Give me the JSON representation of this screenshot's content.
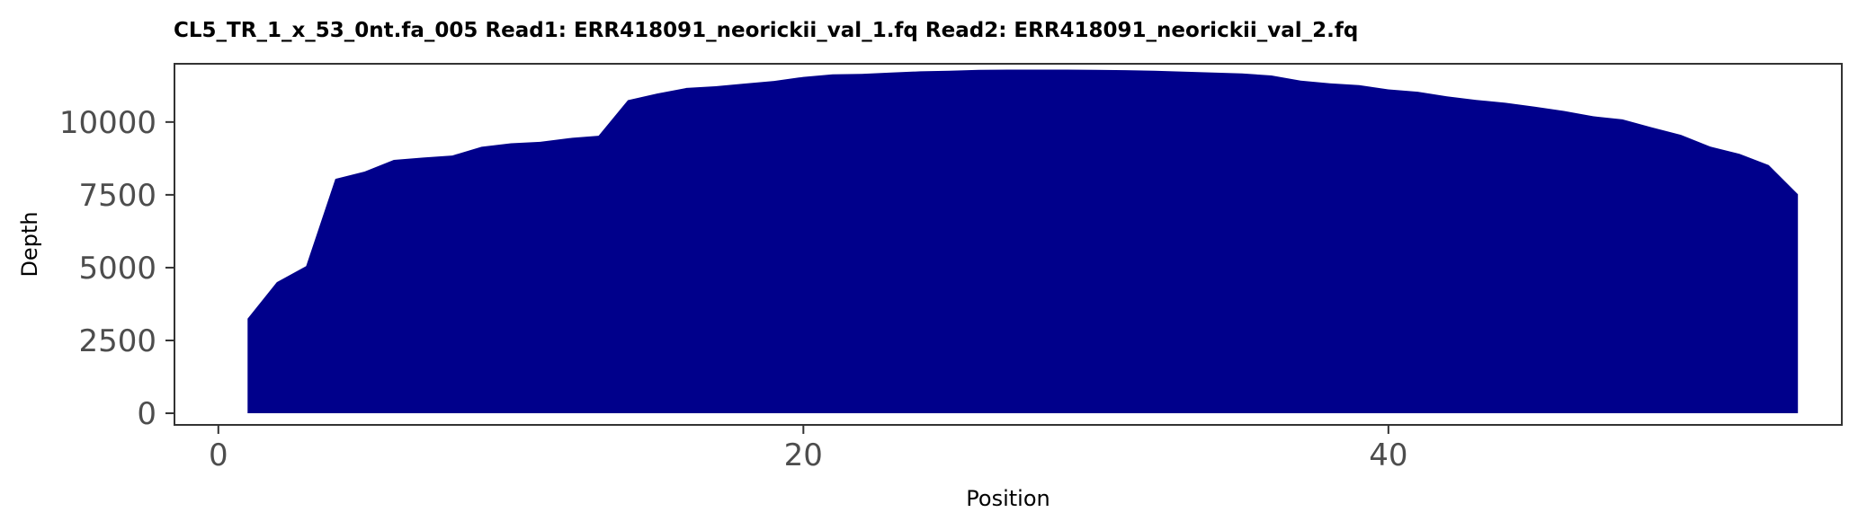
{
  "chart_data": {
    "type": "area",
    "title": "CL5_TR_1_x_53_0nt.fa_005   Read1: ERR418091_neorickii_val_1.fq   Read2: ERR418091_neorickii_val_2.fq",
    "xlabel": "Position",
    "ylabel": "Depth",
    "xlim": [
      -1.5,
      55.5
    ],
    "ylim": [
      -400,
      12000
    ],
    "x_ticks": [
      0,
      20,
      40
    ],
    "y_ticks": [
      0,
      2500,
      5000,
      7500,
      10000
    ],
    "grid": false,
    "legend": "none",
    "fill_color": "#00008b",
    "series": [
      {
        "x": [
          1,
          2,
          3,
          4,
          5,
          6,
          7,
          8,
          9,
          10,
          11,
          12,
          13,
          14,
          15,
          16,
          17,
          18,
          19,
          20,
          21,
          22,
          23,
          24,
          25,
          26,
          27,
          28,
          29,
          30,
          31,
          32,
          33,
          34,
          35,
          36,
          37,
          38,
          39,
          40,
          41,
          42,
          43,
          44,
          45,
          46,
          47,
          48,
          49,
          50,
          51,
          52,
          53,
          54
        ],
        "values": [
          3250,
          4500,
          5050,
          8050,
          8300,
          8700,
          8780,
          8850,
          9150,
          9270,
          9320,
          9450,
          9530,
          10750,
          10980,
          11170,
          11230,
          11320,
          11410,
          11550,
          11640,
          11650,
          11700,
          11740,
          11760,
          11790,
          11800,
          11800,
          11800,
          11790,
          11780,
          11760,
          11730,
          11700,
          11670,
          11600,
          11420,
          11330,
          11270,
          11120,
          11040,
          10880,
          10760,
          10660,
          10530,
          10380,
          10200,
          10090,
          9820,
          9560,
          9160,
          8910,
          8520,
          7520
        ]
      }
    ]
  }
}
